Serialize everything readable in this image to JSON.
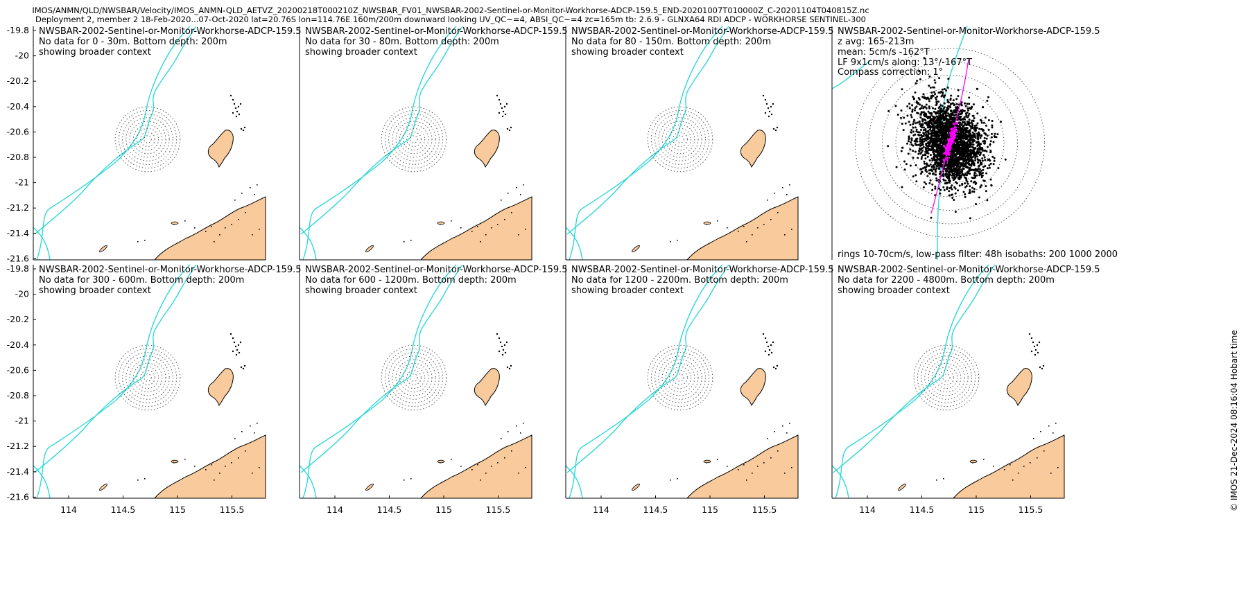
{
  "header": {
    "line1": "IMOS/ANMN/QLD/NWSBAR/Velocity/IMOS_ANMN-QLD_AETVZ_20200218T000210Z_NWSBAR_FV01_NWSBAR-2002-Sentinel-or-Monitor-Workhorse-ADCP-159.5_END-20201007T010000Z_C-20201104T040815Z.nc",
    "line2": "Deployment 2, member 2 18-Feb-2020...07-Oct-2020 lat=20.76S lon=114.76E 160m/200m downward looking UV_QC~=4, ABSI_QC~=4 zc=165m tb: 2.6.9 - GLNXA64 RDI ADCP - WORKHORSE SENTINEL-300"
  },
  "credit": "© IMOS 21-Dec-2024 08:16:04 Hobart time",
  "axes": {
    "y_ticks": [
      "-19.8",
      "-20",
      "-20.2",
      "-20.4",
      "-20.6",
      "-20.8",
      "-21",
      "-21.2",
      "-21.4",
      "-21.6"
    ],
    "x_ticks": [
      "114",
      "114.5",
      "115",
      "115.5"
    ]
  },
  "panels": [
    {
      "title": "NWSBAR-2002-Sentinel-or-Monitor-Workhorse-ADCP-159.5",
      "line2": "No data for 0 - 30m. Bottom depth: 200m",
      "line3": "showing broader context"
    },
    {
      "title": "NWSBAR-2002-Sentinel-or-Monitor-Workhorse-ADCP-159.5",
      "line2": "No data for 30 - 80m. Bottom depth: 200m",
      "line3": "showing broader context"
    },
    {
      "title": "NWSBAR-2002-Sentinel-or-Monitor-Workhorse-ADCP-159.5",
      "line2": "No data for 80 - 150m. Bottom depth: 200m",
      "line3": "showing broader context"
    },
    {
      "title": "NWSBAR-2002-Sentinel-or-Monitor-Workhorse-ADCP-159.5",
      "line2": "z avg: 165-213m",
      "line3": "mean: 5cm/s -162°T",
      "line4": "LF 9x1cm/s along: 13°/-167°T",
      "line5": "Compass correction: 1°",
      "footer": "rings 10-70cm/s, low-pass filter: 48h isobaths: 200 1000 2000"
    },
    {
      "title": "NWSBAR-2002-Sentinel-or-Monitor-Workhorse-ADCP-159.5",
      "line2": "No data for 300 - 600m. Bottom depth: 200m",
      "line3": "showing broader context"
    },
    {
      "title": "NWSBAR-2002-Sentinel-or-Monitor-Workhorse-ADCP-159.5",
      "line2": "No data for 600 - 1200m. Bottom depth: 200m",
      "line3": "showing broader context"
    },
    {
      "title": "NWSBAR-2002-Sentinel-or-Monitor-Workhorse-ADCP-159.5",
      "line2": "No data for 1200 - 2200m. Bottom depth: 200m",
      "line3": "showing broader context"
    },
    {
      "title": "NWSBAR-2002-Sentinel-or-Monitor-Workhorse-ADCP-159.5",
      "line2": "No data for 2200 - 4800m. Bottom depth: 200m",
      "line3": "showing broader context"
    }
  ],
  "colors": {
    "isobath": "#2ed8d8",
    "land": "#f9cb9c",
    "scatter": "#000000",
    "lowpass": "#ff00ff",
    "rings": "#555555"
  }
}
